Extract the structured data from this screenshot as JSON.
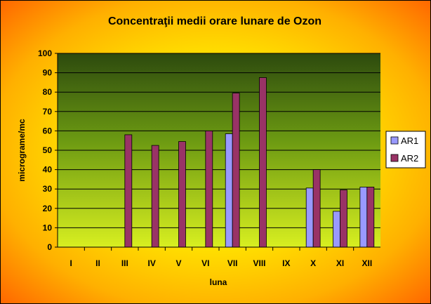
{
  "chart_data": {
    "type": "bar",
    "title": "Concentraţii medii orare lunare de Ozon",
    "xlabel": "luna",
    "ylabel": "micrograme/mc",
    "ylim": [
      0,
      100
    ],
    "yticks": [
      0,
      10,
      20,
      30,
      40,
      50,
      60,
      70,
      80,
      90,
      100
    ],
    "grid": true,
    "legend_position": "right",
    "categories": [
      "I",
      "II",
      "III",
      "IV",
      "V",
      "VI",
      "VII",
      "VIII",
      "IX",
      "X",
      "XI",
      "XII"
    ],
    "series": [
      {
        "name": "AR1",
        "color": "#9999ff",
        "values": [
          null,
          null,
          null,
          null,
          null,
          null,
          58.5,
          null,
          null,
          30.5,
          18.5,
          31
        ]
      },
      {
        "name": "AR2",
        "color": "#993366",
        "values": [
          null,
          null,
          58,
          52.5,
          54.5,
          60,
          79.5,
          87.5,
          null,
          40,
          29.5,
          31
        ]
      }
    ]
  }
}
